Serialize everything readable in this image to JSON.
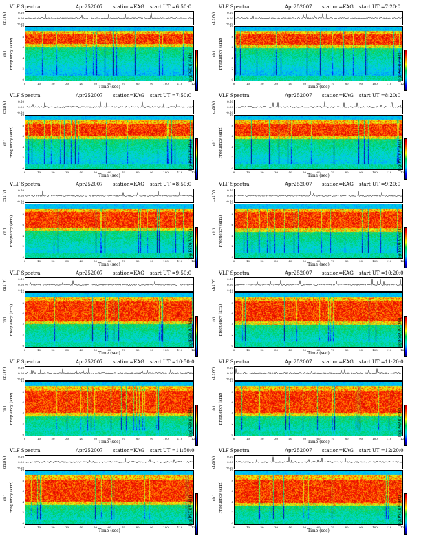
{
  "figure": {
    "title_prefix": "VLF Spectra",
    "date": "Apr252007",
    "station": "station=KAG",
    "x_axis_label": "Time (sec)",
    "ts_ylabel": "ch1(V)",
    "spec_ylabel_line1": "ch1",
    "spec_ylabel_line2": "Frequency (kHz)",
    "colorbar_label": "log(PSD)(V²/Hz)"
  },
  "panels": [
    {
      "start": "start UT =6:50:0",
      "ts_ticks": [
        "0.10",
        "0.00",
        "-0.10"
      ],
      "profile": {
        "cyan_top": 0.93,
        "red_low": 0.68,
        "red_high": 0.86,
        "yellow_high": 0.91
      }
    },
    {
      "start": "start UT =7:20:0",
      "ts_ticks": [
        "0.10",
        "0.00",
        "-0.10"
      ],
      "profile": {
        "cyan_top": 0.93,
        "red_low": 0.67,
        "red_high": 0.86,
        "yellow_high": 0.91
      }
    },
    {
      "start": "start UT =7:50:0",
      "ts_ticks": [
        "0.10",
        "0.00",
        "-0.10"
      ],
      "profile": {
        "cyan_top": 0.93,
        "red_low": 0.62,
        "red_high": 0.85,
        "yellow_high": 0.91
      }
    },
    {
      "start": "start UT =8:20:0",
      "ts_ticks": [
        "0.10",
        "0.00",
        "-0.10"
      ],
      "profile": {
        "cyan_top": 0.93,
        "red_low": 0.62,
        "red_high": 0.85,
        "yellow_high": 0.91
      }
    },
    {
      "start": "start UT =8:50:0",
      "ts_ticks": [
        "0.10",
        "0.00",
        "-0.10"
      ],
      "profile": {
        "cyan_top": 0.93,
        "red_low": 0.57,
        "red_high": 0.86,
        "yellow_high": 0.91
      }
    },
    {
      "start": "start UT =9:20:0",
      "ts_ticks": [
        "0.10",
        "0.00",
        "-0.10"
      ],
      "profile": {
        "cyan_top": 0.93,
        "red_low": 0.55,
        "red_high": 0.86,
        "yellow_high": 0.91
      }
    },
    {
      "start": "start UT =9:50:0",
      "ts_ticks": [
        "0.10",
        "0.00",
        "-0.10"
      ],
      "profile": {
        "cyan_top": 0.93,
        "red_low": 0.48,
        "red_high": 0.85,
        "yellow_high": 0.91
      }
    },
    {
      "start": "start UT =10:20:0",
      "ts_ticks": [
        "0.10",
        "0.00",
        "-0.10"
      ],
      "profile": {
        "cyan_top": 0.93,
        "red_low": 0.47,
        "red_high": 0.85,
        "yellow_high": 0.91
      }
    },
    {
      "start": "start UT =10:50:0",
      "ts_ticks": [
        "0.10",
        "0.00",
        "-0.10"
      ],
      "profile": {
        "cyan_top": 0.93,
        "red_low": 0.42,
        "red_high": 0.84,
        "yellow_high": 0.91
      }
    },
    {
      "start": "start UT =11:20:0",
      "ts_ticks": [
        "0.10",
        "0.00",
        "-0.10"
      ],
      "profile": {
        "cyan_top": 0.93,
        "red_low": 0.42,
        "red_high": 0.84,
        "yellow_high": 0.91
      }
    },
    {
      "start": "start UT =11:50:0",
      "ts_ticks": [
        "0.10",
        "0.00",
        "-0.10"
      ],
      "profile": {
        "cyan_top": 0.93,
        "red_low": 0.42,
        "red_high": 0.84,
        "yellow_high": 0.91
      }
    },
    {
      "start": "start UT =12:20:0",
      "ts_ticks": [
        "0.10",
        "0.00",
        "-0.10"
      ],
      "profile": {
        "cyan_top": 0.93,
        "red_low": 0.4,
        "red_high": 0.84,
        "yellow_high": 0.91
      }
    }
  ],
  "x_ticks": [
    "0",
    "10",
    "20",
    "30",
    "40",
    "50",
    "60",
    "70",
    "80",
    "90",
    "100",
    "110",
    "120"
  ],
  "f_ticks": [
    "0",
    "2",
    "4",
    "6",
    "8",
    "10"
  ],
  "chart_data": {
    "type": "heatmap",
    "title": "VLF Spectra",
    "x_label": "Time (sec)",
    "xlim": [
      0,
      120
    ],
    "y_label": "Frequency (kHz)",
    "ylim": [
      0,
      10
    ],
    "colorbar": "log(PSD)(V²/Hz)",
    "colormap": [
      "#000080",
      "#0000ff",
      "#00c0ff",
      "#00d050",
      "#ffff00",
      "#ff8000",
      "#ff0000"
    ],
    "grid": false,
    "legend": "none"
  }
}
